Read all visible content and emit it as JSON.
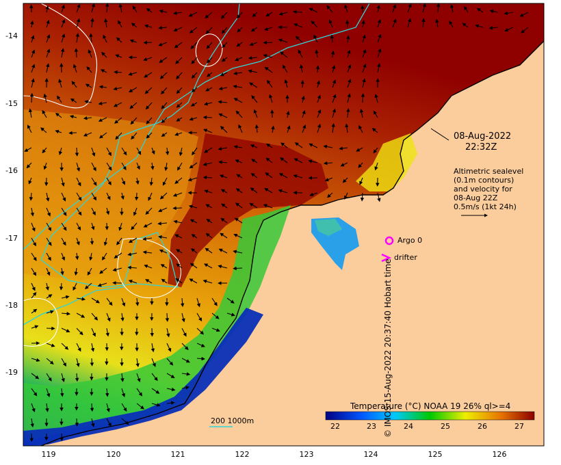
{
  "map": {
    "datetime_line1": "08-Aug-2022",
    "datetime_line2": "22:32Z",
    "y_ticks": [
      "-14",
      "-15",
      "-16",
      "-17",
      "-18",
      "-19"
    ],
    "x_ticks": [
      "119",
      "120",
      "121",
      "122",
      "123",
      "124",
      "125",
      "126"
    ],
    "legend_text": [
      "Altimetric sealevel",
      "(0.1m contours)",
      "and velocity for",
      "08-Aug 22Z",
      "0.5m/s (1kt 24h)"
    ],
    "argo_label": "Argo 0",
    "drifter_label": "drifter",
    "bathy_label": "200  1000m",
    "colorbar_title": "Temperature (°C) NOAA 19 26% ql>=4",
    "colorbar_ticks": [
      "22",
      "23",
      "24",
      "25",
      "26",
      "27"
    ],
    "credit": "© IMOS 15-Aug-2022 20:37:40 Hobart time",
    "colors": {
      "land": "#fbcc9c",
      "argo_drifter": "#ff00ff",
      "bathy_contour": "#31d5d5",
      "sst_scale": [
        "#00007f",
        "#0055ff",
        "#00c8ff",
        "#00c800",
        "#eeee00",
        "#e77400",
        "#8b0000"
      ]
    }
  }
}
